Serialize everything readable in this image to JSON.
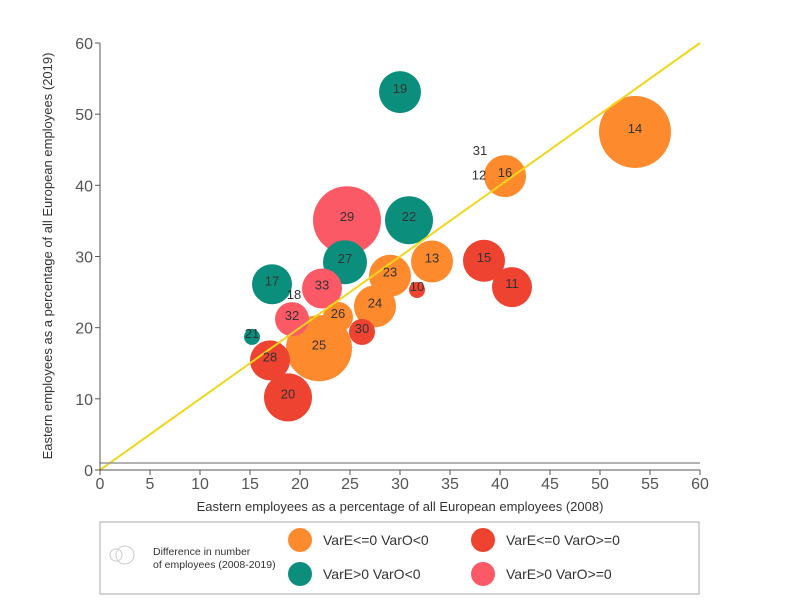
{
  "chart_data": {
    "type": "scatter",
    "subtype": "bubble",
    "xlabel": "Eastern employees as a percentage of all European employees (2008)",
    "ylabel": "Eastern employees as a percentage of all European employees (2019)",
    "xlim": [
      0,
      60
    ],
    "ylim": [
      0,
      60
    ],
    "x_ticks": [
      0,
      5,
      10,
      15,
      20,
      25,
      30,
      35,
      40,
      45,
      50,
      55,
      60
    ],
    "y_ticks": [
      0,
      10,
      20,
      30,
      40,
      50,
      60
    ],
    "grid": false,
    "reference_line": {
      "from": [
        0,
        0
      ],
      "to": [
        60,
        60
      ],
      "color": "#f2d61b"
    },
    "legend_position": "bottom",
    "size_legend_label": "Difference in number of employees (2008-2019)",
    "size_legend_lines": [
      "Difference in number",
      "of employees (2008-2019)"
    ],
    "categories": [
      {
        "key": "A",
        "name": "VarE<=0 VarO<0",
        "color": "#fd8a2d"
      },
      {
        "key": "B",
        "name": "VarE<=0 VarO>=0",
        "color": "#ee4330"
      },
      {
        "key": "C",
        "name": "VarE>0 VarO<0",
        "color": "#0c8e7d"
      },
      {
        "key": "D",
        "name": "VarE>0 VarO>=0",
        "color": "#fc5966"
      }
    ],
    "points": [
      {
        "label": "14",
        "x": 53.5,
        "y": 47.5,
        "cat": "A",
        "size": 36
      },
      {
        "label": "16",
        "x": 40.5,
        "y": 41.3,
        "cat": "A",
        "size": 21
      },
      {
        "label": "13",
        "x": 33.2,
        "y": 29.3,
        "cat": "A",
        "size": 21
      },
      {
        "label": "23",
        "x": 29.0,
        "y": 27.3,
        "cat": "A",
        "size": 21
      },
      {
        "label": "24",
        "x": 27.5,
        "y": 23.0,
        "cat": "A",
        "size": 21
      },
      {
        "label": "26",
        "x": 23.8,
        "y": 21.5,
        "cat": "A",
        "size": 15
      },
      {
        "label": "25",
        "x": 21.9,
        "y": 17.1,
        "cat": "A",
        "size": 33
      },
      {
        "label": "19",
        "x": 30.0,
        "y": 53.1,
        "cat": "C",
        "size": 21
      },
      {
        "label": "22",
        "x": 30.9,
        "y": 35.1,
        "cat": "C",
        "size": 24
      },
      {
        "label": "27",
        "x": 24.5,
        "y": 29.2,
        "cat": "C",
        "size": 22
      },
      {
        "label": "17",
        "x": 17.2,
        "y": 26.1,
        "cat": "C",
        "size": 20
      },
      {
        "label": "21",
        "x": 15.2,
        "y": 18.7,
        "cat": "C",
        "size": 8
      },
      {
        "label": "15",
        "x": 38.4,
        "y": 29.4,
        "cat": "B",
        "size": 21
      },
      {
        "label": "11",
        "x": 41.2,
        "y": 25.7,
        "cat": "B",
        "size": 20
      },
      {
        "label": "10",
        "x": 31.7,
        "y": 25.3,
        "cat": "B",
        "size": 8
      },
      {
        "label": "30",
        "x": 26.2,
        "y": 19.4,
        "cat": "B",
        "size": 13
      },
      {
        "label": "28",
        "x": 17.0,
        "y": 15.4,
        "cat": "B",
        "size": 20
      },
      {
        "label": "20",
        "x": 18.8,
        "y": 10.2,
        "cat": "B",
        "size": 24
      },
      {
        "label": "29",
        "x": 24.7,
        "y": 35.1,
        "cat": "D",
        "size": 34
      },
      {
        "label": "33",
        "x": 22.2,
        "y": 25.5,
        "cat": "D",
        "size": 20
      },
      {
        "label": "32",
        "x": 19.2,
        "y": 21.2,
        "cat": "D",
        "size": 17
      }
    ],
    "text_only_labels": [
      {
        "label": "31",
        "x": 38.0,
        "y": 45.0
      },
      {
        "label": "12",
        "x": 37.9,
        "y": 41.5
      },
      {
        "label": "18",
        "x": 19.4,
        "y": 24.7
      }
    ]
  }
}
